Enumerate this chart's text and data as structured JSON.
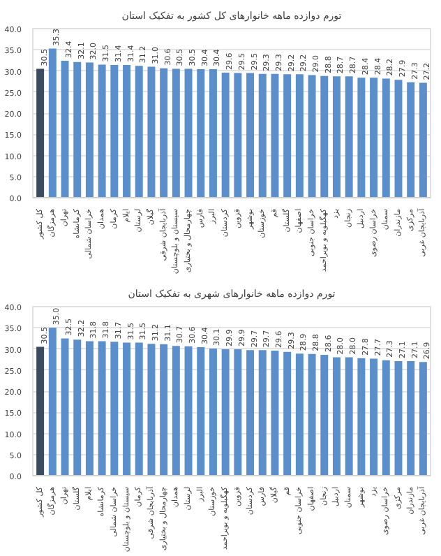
{
  "chart_data": [
    {
      "type": "bar",
      "title": "تورم دوازده ماهه خانوارهای کل کشور به تفکیک استان",
      "categories": [
        "کل کشور",
        "هرمزگان",
        "تهران",
        "کرمانشاه",
        "خراسان شمالی",
        "همدان",
        "کرمان",
        "ایلام",
        "لرستان",
        "گیلان",
        "آذربایجان شرقی",
        "سیستان و بلوچستان",
        "چهارمحال و بختیاری",
        "فارس",
        "البرز",
        "کردستان",
        "قزوین",
        "بوشهر",
        "خوزستان",
        "قم",
        "گلستان",
        "اصفهان",
        "خراسان جنوبی",
        "کهگیلویه و بویراحمد",
        "یزد",
        "زنجان",
        "اردبیل",
        "خراسان رضوی",
        "سمنان",
        "مازندران",
        "مرکزی",
        "آذربایجان غربی"
      ],
      "values": [
        30.5,
        35.3,
        32.4,
        32.1,
        32.0,
        31.5,
        31.4,
        31.4,
        31.2,
        31.0,
        30.6,
        30.5,
        30.5,
        30.4,
        30.4,
        29.6,
        29.5,
        29.5,
        29.3,
        29.3,
        29.2,
        29.2,
        29.0,
        28.8,
        28.7,
        28.7,
        28.4,
        28.4,
        28.2,
        27.9,
        27.3,
        27.2
      ],
      "colors": [
        "#3d4b5e",
        "#5b8fcc",
        "#5b8fcc",
        "#5b8fcc",
        "#5b8fcc",
        "#5b8fcc",
        "#5b8fcc",
        "#5b8fcc",
        "#5b8fcc",
        "#5b8fcc",
        "#5b8fcc",
        "#5b8fcc",
        "#5b8fcc",
        "#5b8fcc",
        "#5b8fcc",
        "#5b8fcc",
        "#5b8fcc",
        "#5b8fcc",
        "#5b8fcc",
        "#5b8fcc",
        "#5b8fcc",
        "#5b8fcc",
        "#5b8fcc",
        "#5b8fcc",
        "#5b8fcc",
        "#5b8fcc",
        "#5b8fcc",
        "#5b8fcc",
        "#5b8fcc",
        "#5b8fcc",
        "#5b8fcc",
        "#5b8fcc"
      ],
      "ylim": [
        0,
        40
      ],
      "yticks": [
        {
          "value": 0,
          "label": "0.0"
        },
        {
          "value": 5,
          "label": "5.0"
        },
        {
          "value": 10,
          "label": "10.0"
        },
        {
          "value": 15,
          "label": "15.0"
        },
        {
          "value": 20,
          "label": "20.0"
        },
        {
          "value": 25,
          "label": "25.0"
        },
        {
          "value": 30,
          "label": "30.0"
        },
        {
          "value": 35,
          "label": "35.0"
        },
        {
          "value": 40,
          "label": "40.0"
        }
      ],
      "grid": "y",
      "value_labels": [
        "30.5",
        "35.3",
        "32.4",
        "32.1",
        "32.0",
        "31.5",
        "31.4",
        "31.4",
        "31.2",
        "31.0",
        "30.6",
        "30.5",
        "30.5",
        "30.4",
        "30.4",
        "29.6",
        "29.5",
        "29.5",
        "29.3",
        "29.3",
        "29.2",
        "29.2",
        "29.0",
        "28.8",
        "28.7",
        "28.7",
        "28.4",
        "28.4",
        "28.2",
        "27.9",
        "27.3",
        "27.2"
      ]
    },
    {
      "type": "bar",
      "title": "تورم دوازده ماهه خانوارهای شهری به تفکیک استان",
      "categories": [
        "کل کشور",
        "هرمزگان",
        "تهران",
        "گلستان",
        "ایلام",
        "کرمانشاه",
        "خراسان شمالی",
        "سیستان و بلوچستان",
        "کرمان",
        "آذربایجان شرقی",
        "چهارمحال و بختیاری",
        "همدان",
        "لرستان",
        "البرز",
        "خوزستان",
        "کهگیلویه و بویراحمد",
        "قزوین",
        "کردستان",
        "فارس",
        "گیلان",
        "قم",
        "خراسان جنوبی",
        "اصفهان",
        "زنجان",
        "اردبیل",
        "سمنان",
        "بوشهر",
        "یزد",
        "خراسان رضوی",
        "مرکزی",
        "مازندران",
        "آذربایجان غربی"
      ],
      "values": [
        30.5,
        35.0,
        32.5,
        32.2,
        31.8,
        31.8,
        31.7,
        31.5,
        31.5,
        31.2,
        31.1,
        30.7,
        30.6,
        30.4,
        30.1,
        29.9,
        29.9,
        29.7,
        29.7,
        29.6,
        29.3,
        28.9,
        28.8,
        28.6,
        28.0,
        28.0,
        27.8,
        27.7,
        27.3,
        27.1,
        27.1,
        26.9
      ],
      "colors": [
        "#3d4b5e",
        "#5b8fcc",
        "#5b8fcc",
        "#5b8fcc",
        "#5b8fcc",
        "#5b8fcc",
        "#5b8fcc",
        "#5b8fcc",
        "#5b8fcc",
        "#5b8fcc",
        "#5b8fcc",
        "#5b8fcc",
        "#5b8fcc",
        "#5b8fcc",
        "#5b8fcc",
        "#5b8fcc",
        "#5b8fcc",
        "#5b8fcc",
        "#5b8fcc",
        "#5b8fcc",
        "#5b8fcc",
        "#5b8fcc",
        "#5b8fcc",
        "#5b8fcc",
        "#5b8fcc",
        "#5b8fcc",
        "#5b8fcc",
        "#5b8fcc",
        "#5b8fcc",
        "#5b8fcc",
        "#5b8fcc",
        "#5b8fcc"
      ],
      "ylim": [
        0,
        40
      ],
      "yticks": [
        {
          "value": 0,
          "label": "0.0"
        },
        {
          "value": 5,
          "label": "5.0"
        },
        {
          "value": 10,
          "label": "10.0"
        },
        {
          "value": 15,
          "label": "15.0"
        },
        {
          "value": 20,
          "label": "20.0"
        },
        {
          "value": 25,
          "label": "25.0"
        },
        {
          "value": 30,
          "label": "30.0"
        },
        {
          "value": 35,
          "label": "35.0"
        },
        {
          "value": 40,
          "label": "40.0"
        }
      ],
      "grid": "y",
      "value_labels": [
        "30.5",
        "35.0",
        "32.5",
        "32.2",
        "31.8",
        "31.8",
        "31.7",
        "31.5",
        "31.5",
        "31.2",
        "31.1",
        "30.7",
        "30.6",
        "30.4",
        "30.1",
        "29.9",
        "29.9",
        "29.7",
        "29.7",
        "29.6",
        "29.3",
        "28.9",
        "28.8",
        "28.6",
        "28.0",
        "28.0",
        "27.8",
        "27.7",
        "27.3",
        "27.1",
        "27.1",
        "26.9"
      ]
    }
  ]
}
